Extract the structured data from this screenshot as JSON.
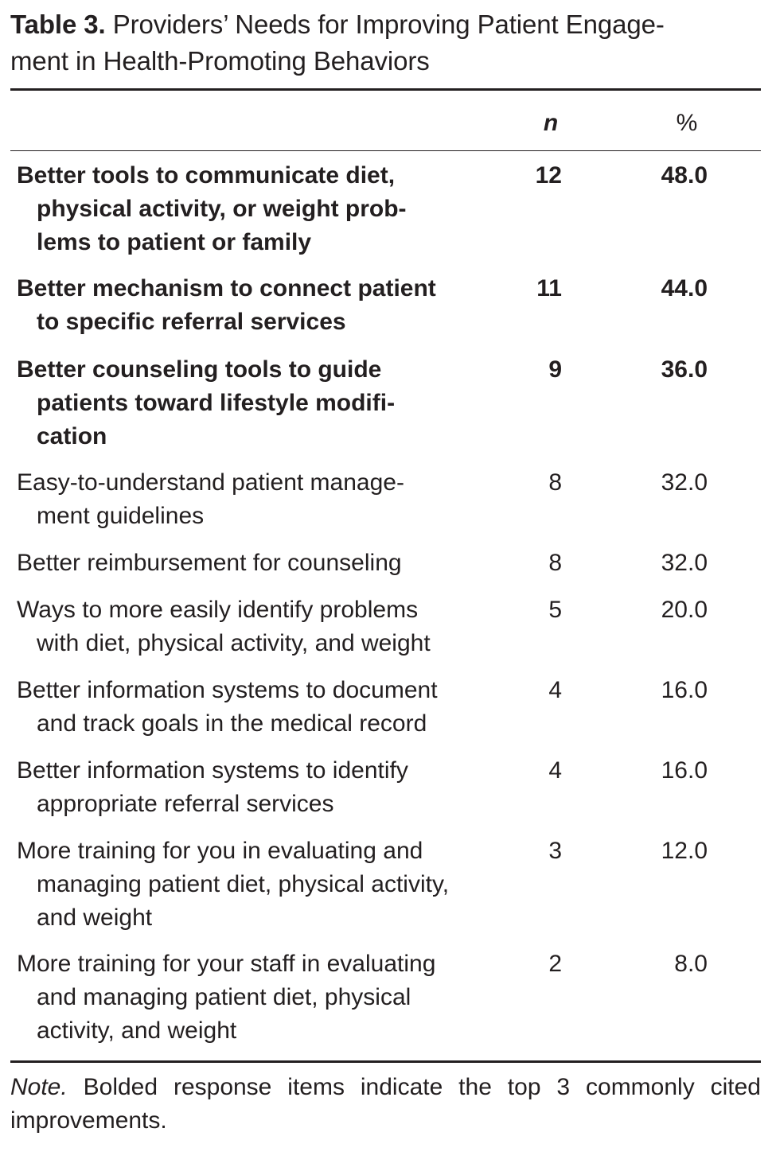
{
  "table": {
    "label": "Table 3.",
    "title_line1": "Providers’ Needs for Improving Patient Engage-",
    "title_line2": "ment in Health-Promoting Behaviors",
    "columns": {
      "n": "n",
      "pct": "%"
    },
    "rows": [
      {
        "lines": [
          "Better tools to communicate diet,",
          "physical activity, or weight prob-",
          "lems to patient or family"
        ],
        "n": "12",
        "pct": "48.0",
        "bold": true
      },
      {
        "lines": [
          "Better mechanism to connect patient",
          "to specific referral services"
        ],
        "n": "11",
        "pct": "44.0",
        "bold": true
      },
      {
        "lines": [
          "Better counseling tools to guide",
          "patients toward lifestyle modifi-",
          "cation"
        ],
        "n": "9",
        "pct": "36.0",
        "bold": true
      },
      {
        "lines": [
          "Easy-to-understand patient manage-",
          "ment guidelines"
        ],
        "n": "8",
        "pct": "32.0",
        "bold": false
      },
      {
        "lines": [
          "Better reimbursement for counseling"
        ],
        "n": "8",
        "pct": "32.0",
        "bold": false
      },
      {
        "lines": [
          "Ways to more easily identify problems",
          "with diet, physical activity, and weight"
        ],
        "n": "5",
        "pct": "20.0",
        "bold": false
      },
      {
        "lines": [
          "Better information systems to document",
          "and track goals in the medical record"
        ],
        "n": "4",
        "pct": "16.0",
        "bold": false
      },
      {
        "lines": [
          "Better information systems to identify",
          "appropriate referral services"
        ],
        "n": "4",
        "pct": "16.0",
        "bold": false
      },
      {
        "lines": [
          "More training for you in evaluating and",
          "managing patient diet, physical activity,",
          "and weight"
        ],
        "n": "3",
        "pct": "12.0",
        "bold": false
      },
      {
        "lines": [
          "More training for your staff in evaluating",
          "and managing patient diet, physical",
          "activity, and weight"
        ],
        "n": "2",
        "pct": "8.0",
        "bold": false
      }
    ]
  },
  "note": {
    "label": "Note.",
    "text": " Bolded response items indicate the top 3 commonly cited improvements."
  }
}
